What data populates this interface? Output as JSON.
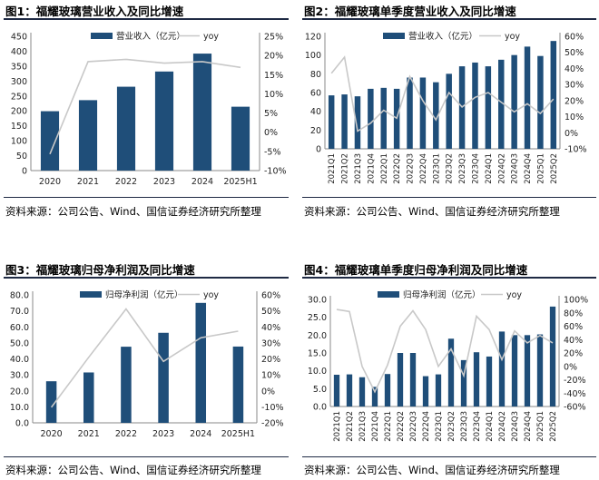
{
  "colors": {
    "bar": "#1f4e79",
    "line": "#c8c8c8",
    "rule": "#1f2a44"
  },
  "panels": [
    {
      "title": "图1：福耀玻璃营业收入及同比增速",
      "source": "资料来源：公司公告、Wind、国信证券经济研究所整理"
    },
    {
      "title": "图2：福耀玻璃单季度营业收入及同比增速",
      "source": "资料来源：公司公告、Wind、国信证券经济研究所整理"
    },
    {
      "title": "图3：福耀玻璃归母净利润及同比增速",
      "source": "资料来源：公司公告、Wind、国信证券经济研究所整理"
    },
    {
      "title": "图4：福耀玻璃单季度归母净利润及同比增速",
      "source": "资料来源：公司公告、Wind、国信证券经济研究所整理"
    }
  ],
  "chart_data": [
    {
      "type": "bar",
      "categories": [
        "2020",
        "2021",
        "2022",
        "2023",
        "2024",
        "2025H1"
      ],
      "series": [
        {
          "name": "营业收入（亿元）",
          "type": "bar",
          "axis": "left",
          "values": [
            199,
            236,
            281,
            332,
            392,
            214
          ]
        },
        {
          "name": "yoy",
          "type": "line",
          "axis": "right",
          "values": [
            -5.7,
            18.4,
            19.0,
            18.0,
            18.4,
            16.9
          ]
        }
      ],
      "ylim": [
        0,
        450
      ],
      "yticks": [
        0,
        50,
        100,
        150,
        200,
        250,
        300,
        350,
        400,
        450
      ],
      "y2lim": [
        -10,
        25
      ],
      "y2ticks": [
        -10,
        -5,
        0,
        5,
        10,
        15,
        20,
        25
      ],
      "y2suffix": "%",
      "legend": "top"
    },
    {
      "type": "bar",
      "categories": [
        "2021Q1",
        "2021Q2",
        "2021Q3",
        "2021Q4",
        "2022Q1",
        "2022Q2",
        "2022Q3",
        "2022Q4",
        "2023Q1",
        "2023Q2",
        "2023Q3",
        "2023Q4",
        "2024Q1",
        "2024Q2",
        "2024Q3",
        "2024Q4",
        "2025Q1",
        "2025Q2"
      ],
      "series": [
        {
          "name": "营业收入（亿元）",
          "type": "bar",
          "axis": "left",
          "values": [
            57,
            58,
            56,
            64,
            65,
            64,
            76,
            76,
            71,
            80,
            88,
            92,
            88,
            95,
            100,
            109,
            99,
            115
          ]
        },
        {
          "name": "yoy",
          "type": "line",
          "axis": "right",
          "values": [
            37,
            47,
            1,
            6,
            14,
            9,
            35,
            20,
            8,
            25,
            16,
            22,
            25,
            19,
            13,
            18,
            12,
            21
          ]
        }
      ],
      "ylim": [
        0,
        120
      ],
      "yticks": [
        0,
        20,
        40,
        60,
        80,
        100,
        120
      ],
      "y2lim": [
        -10,
        60
      ],
      "y2ticks": [
        -10,
        0,
        10,
        20,
        30,
        40,
        50,
        60
      ],
      "y2suffix": "%",
      "legend": "top"
    },
    {
      "type": "bar",
      "categories": [
        "2020",
        "2021",
        "2022",
        "2023",
        "2024",
        "2025H1"
      ],
      "series": [
        {
          "name": "归母净利润（亿元）",
          "type": "bar",
          "axis": "left",
          "values": [
            26.0,
            31.5,
            47.6,
            56.3,
            75.0,
            47.7
          ]
        },
        {
          "name": "yoy",
          "type": "line",
          "axis": "right",
          "values": [
            -10.3,
            21.0,
            51.2,
            18.4,
            33.2,
            37.3
          ]
        }
      ],
      "ylim": [
        0,
        80
      ],
      "yticks": [
        "0.0",
        "10.0",
        "20.0",
        "30.0",
        "40.0",
        "50.0",
        "60.0",
        "70.0",
        "80.0"
      ],
      "y2lim": [
        -20,
        60
      ],
      "y2ticks": [
        -20,
        -10,
        0,
        10,
        20,
        30,
        40,
        50,
        60
      ],
      "y2suffix": "%",
      "legend": "top"
    },
    {
      "type": "bar",
      "categories": [
        "2021Q1",
        "2021Q2",
        "2021Q3",
        "2021Q4",
        "2022Q1",
        "2022Q2",
        "2022Q3",
        "2022Q4",
        "2023Q1",
        "2023Q2",
        "2023Q3",
        "2023Q4",
        "2024Q1",
        "2024Q2",
        "2024Q3",
        "2024Q4",
        "2025Q1",
        "2025Q2"
      ],
      "series": [
        {
          "name": "归母净利润（亿元）",
          "type": "bar",
          "axis": "left",
          "values": [
            8.9,
            9.0,
            8.2,
            5.5,
            9.1,
            15.0,
            15.0,
            8.5,
            9.0,
            19.0,
            13.0,
            15.2,
            14.0,
            21.0,
            20.0,
            20.0,
            20.2,
            28.0
          ]
        },
        {
          "name": "yoy",
          "type": "line",
          "axis": "right",
          "values": [
            85,
            82,
            0,
            -38,
            2,
            60,
            83,
            55,
            0,
            26,
            -14,
            75,
            55,
            10,
            53,
            35,
            46,
            35
          ]
        }
      ],
      "ylim": [
        0,
        30
      ],
      "yticks": [
        "0.0",
        "5.0",
        "10.0",
        "15.0",
        "20.0",
        "25.0",
        "30.0"
      ],
      "y2lim": [
        -60,
        100
      ],
      "y2ticks": [
        -60,
        -40,
        -20,
        0,
        20,
        40,
        60,
        80,
        100
      ],
      "y2suffix": "%",
      "legend": "top"
    }
  ]
}
